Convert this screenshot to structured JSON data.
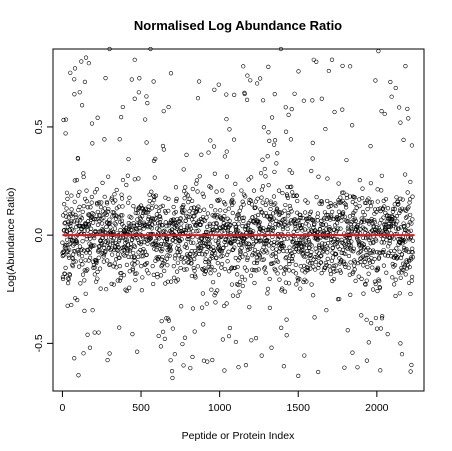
{
  "chart_data": {
    "type": "scatter",
    "title": "Normalised Log Abundance Ratio",
    "xlabel": "Peptide or Protein Index",
    "ylabel": "Log(Abundance Ratio)",
    "xlim": [
      -60,
      2300
    ],
    "ylim": [
      -0.72,
      0.86
    ],
    "x_ticks": [
      0,
      500,
      1000,
      1500,
      2000
    ],
    "x_tick_labels": [
      "0",
      "500",
      "1000",
      "1500",
      "2000"
    ],
    "y_ticks": [
      -0.5,
      0.0,
      0.5
    ],
    "y_tick_labels": [
      "-0.5",
      "0.0",
      "0.5"
    ],
    "reference_line": {
      "y": 0.0,
      "color": "#e8141a"
    },
    "marker": "open-circle",
    "marker_color": "#000000",
    "n_points": 2230,
    "notable_points": [
      {
        "x": 20,
        "y": 0.47
      },
      {
        "x": 35,
        "y": -0.2
      },
      {
        "x": 45,
        "y": -0.18
      },
      {
        "x": 50,
        "y": 0.75
      },
      {
        "x": 75,
        "y": 0.72
      },
      {
        "x": 110,
        "y": 0.66
      },
      {
        "x": 125,
        "y": 0.6
      },
      {
        "x": 140,
        "y": -0.35
      },
      {
        "x": 160,
        "y": -0.46
      },
      {
        "x": 175,
        "y": -0.52
      },
      {
        "x": 205,
        "y": -0.45
      },
      {
        "x": 230,
        "y": -0.45
      },
      {
        "x": 150,
        "y": 0.82
      },
      {
        "x": 300,
        "y": 0.86
      },
      {
        "x": 460,
        "y": 0.81
      },
      {
        "x": 560,
        "y": 0.86
      },
      {
        "x": 580,
        "y": 0.71
      },
      {
        "x": 460,
        "y": 0.63
      },
      {
        "x": 540,
        "y": 0.61
      },
      {
        "x": 700,
        "y": -0.66
      },
      {
        "x": 715,
        "y": -0.55
      },
      {
        "x": 900,
        "y": -0.58
      },
      {
        "x": 1120,
        "y": -0.61
      },
      {
        "x": 1330,
        "y": -0.52
      },
      {
        "x": 1500,
        "y": -0.65
      },
      {
        "x": 1390,
        "y": 0.86
      },
      {
        "x": 2010,
        "y": 0.85
      },
      {
        "x": 1830,
        "y": 0.78
      },
      {
        "x": 2120,
        "y": 0.68
      },
      {
        "x": 2150,
        "y": 0.52
      },
      {
        "x": 2170,
        "y": 0.44
      },
      {
        "x": 2180,
        "y": 0.28
      },
      {
        "x": 2150,
        "y": -0.5
      },
      {
        "x": 2160,
        "y": -0.55
      },
      {
        "x": 2215,
        "y": -0.63
      },
      {
        "x": 2220,
        "y": -0.6
      },
      {
        "x": 1150,
        "y": 0.78
      },
      {
        "x": 1780,
        "y": 0.58
      },
      {
        "x": 1650,
        "y": 0.63
      },
      {
        "x": 2050,
        "y": 0.56
      }
    ],
    "distribution": {
      "center": 0.0,
      "core_sd": 0.1,
      "tail_fraction": 0.12,
      "tail_range": [
        -0.68,
        0.86
      ]
    },
    "grid": false,
    "legend": "none"
  }
}
